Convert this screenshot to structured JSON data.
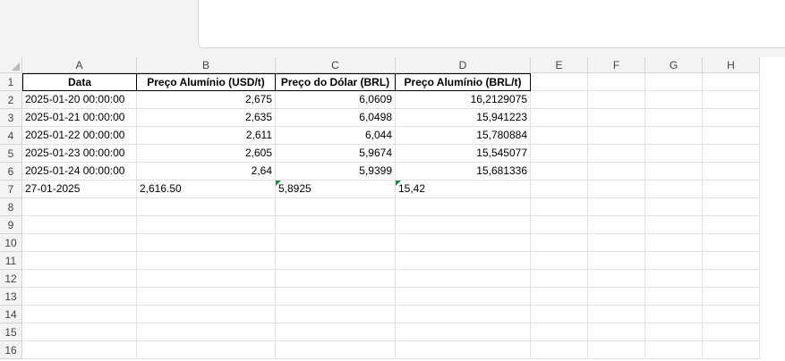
{
  "columns": [
    "A",
    "B",
    "C",
    "D",
    "E",
    "F",
    "G",
    "H"
  ],
  "rows": [
    "1",
    "2",
    "3",
    "4",
    "5",
    "6",
    "7",
    "8",
    "9",
    "10",
    "11",
    "12",
    "13",
    "14",
    "15",
    "16"
  ],
  "headers": [
    "Data",
    "Preço Alumínio (USD/t)",
    "Preço do Dólar (BRL)",
    "Preço Alumínio (BRL/t)"
  ],
  "data_rows": [
    {
      "a": "2025-01-20 00:00:00",
      "b": "2,675",
      "c": "6,0609",
      "d": "16,2129075"
    },
    {
      "a": "2025-01-21 00:00:00",
      "b": "2,635",
      "c": "6,0498",
      "d": "15,941223"
    },
    {
      "a": "2025-01-22 00:00:00",
      "b": "2,611",
      "c": "6,044",
      "d": "15,780884"
    },
    {
      "a": "2025-01-23 00:00:00",
      "b": "2,605",
      "c": "5,9674",
      "d": "15,545077"
    },
    {
      "a": "2025-01-24 00:00:00",
      "b": "2,64",
      "c": "5,9399",
      "d": "15,681336"
    }
  ],
  "text_row": {
    "a": "27-01-2025",
    "b": "2,616.50",
    "c": "5,8925",
    "d": "15,42"
  },
  "colors": {
    "chrome": "#f3f3f3",
    "gridline": "#e1e1e1",
    "number_as_text_marker": "#1e8c3f"
  }
}
